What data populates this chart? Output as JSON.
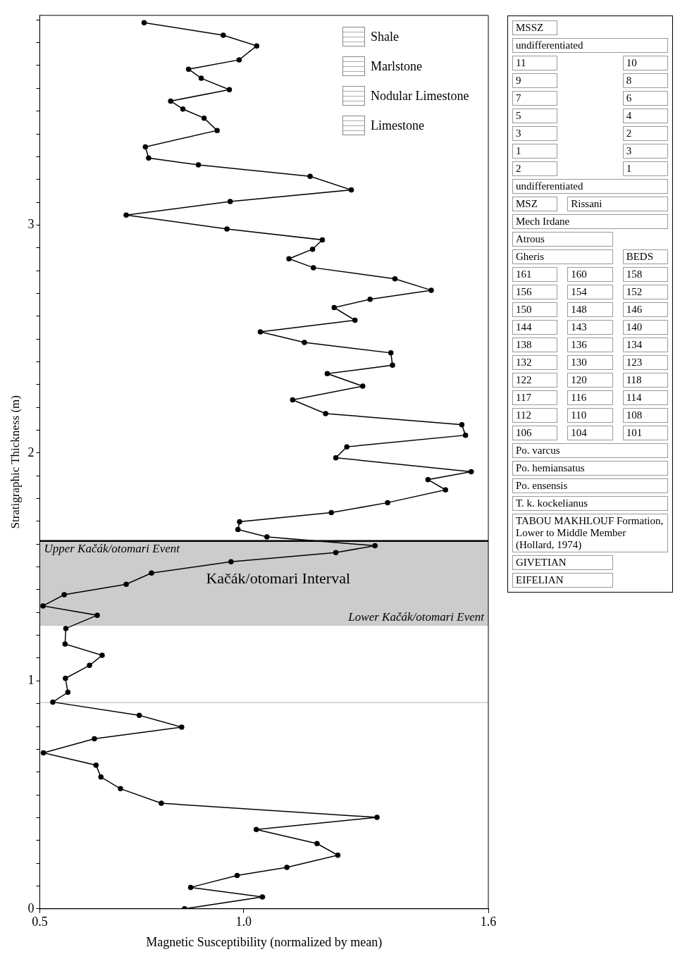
{
  "chart_data": [
    {
      "type": "line",
      "xlabel": "Magnetic Susceptibility (normalized by mean)",
      "ylabel": "Stratigraphic Thickness (m)",
      "xlim": [
        0.5,
        1.6
      ],
      "ylim": [
        0,
        3.92
      ],
      "xticks": [
        0.5,
        {
          "value": 1.0,
          "label": "1.0"
        },
        1.6
      ],
      "yticks": [
        0,
        {
          "value": 0.1,
          "label": null
        },
        {
          "value": 0.2,
          "label": null
        },
        {
          "value": 0.3,
          "label": null
        },
        {
          "value": 0.4,
          "label": null
        },
        {
          "value": 0.5,
          "label": null
        },
        {
          "value": 0.6,
          "label": null
        },
        {
          "value": 0.7,
          "label": null
        },
        {
          "value": 0.8,
          "label": null
        },
        {
          "value": 0.9,
          "label": null
        },
        1,
        {
          "value": 1.1,
          "label": null
        },
        {
          "value": 1.2,
          "label": null
        },
        {
          "value": 1.3,
          "label": null
        },
        {
          "value": 1.4,
          "label": null
        },
        {
          "value": 1.5,
          "label": null
        },
        {
          "value": 1.6,
          "label": null
        },
        {
          "value": 1.7,
          "label": null
        },
        {
          "value": 1.8,
          "label": null
        },
        {
          "value": 1.9,
          "label": null
        },
        2,
        {
          "value": 2.1,
          "label": null
        },
        {
          "value": 2.2,
          "label": null
        },
        {
          "value": 2.3,
          "label": null
        },
        {
          "value": 2.4,
          "label": null
        },
        {
          "value": 2.5,
          "label": null
        },
        {
          "value": 2.6,
          "label": null
        },
        {
          "value": 2.7,
          "label": null
        },
        {
          "value": 2.8,
          "label": null
        },
        {
          "value": 2.9,
          "label": null
        },
        3,
        {
          "value": 3.1,
          "label": null
        },
        {
          "value": 3.2,
          "label": null
        },
        {
          "value": 3.3,
          "label": null
        },
        {
          "value": 3.4,
          "label": null
        },
        {
          "value": 3.5,
          "label": null
        },
        {
          "value": 3.6,
          "label": null
        },
        {
          "value": 3.7,
          "label": null
        },
        {
          "value": 3.8,
          "label": null
        },
        {
          "value": 3.9,
          "label": null
        }
      ],
      "grid": false,
      "marker": "circle",
      "line_style": "solid",
      "legend": false,
      "series": [
        {
          "color": "#000000",
          "x": [
            0.855,
            1.046,
            0.87,
            0.984,
            1.106,
            1.231,
            1.18,
            1.031,
            1.327,
            0.798,
            0.698,
            0.65,
            0.638,
            0.509,
            0.634,
            0.848,
            0.744,
            0.532,
            0.569,
            0.563,
            0.622,
            0.653,
            0.562,
            0.564,
            0.641,
            0.508,
            0.56,
            0.712,
            0.774,
            0.969,
            1.226,
            1.322,
            1.057,
            0.986,
            0.99,
            1.215,
            1.353,
            1.495,
            1.452,
            1.558,
            1.226,
            1.253,
            1.544,
            1.535,
            1.201,
            1.12,
            1.292,
            1.205,
            1.365,
            1.361,
            1.149,
            1.041,
            1.273,
            1.222,
            1.31,
            1.46,
            1.371,
            1.171,
            1.111,
            1.169,
            1.193,
            0.959,
            0.712,
            0.967,
            1.264,
            1.163,
            0.889,
            0.767,
            0.759,
            0.935,
            0.903,
            0.851,
            0.821,
            0.965,
            0.896,
            0.865,
            0.989,
            1.032,
            0.95,
            0.756
          ],
          "values": [
            0,
            0.052,
            0.094,
            0.146,
            0.182,
            0.235,
            0.286,
            0.348,
            0.401,
            0.463,
            0.527,
            0.578,
            0.63,
            0.684,
            0.746,
            0.797,
            0.849,
            0.907,
            0.95,
            1.011,
            1.068,
            1.112,
            1.162,
            1.23,
            1.288,
            1.329,
            1.378,
            1.424,
            1.473,
            1.523,
            1.563,
            1.593,
            1.632,
            1.664,
            1.698,
            1.738,
            1.782,
            1.838,
            1.883,
            1.918,
            1.979,
            2.027,
            2.078,
            2.124,
            2.173,
            2.233,
            2.293,
            2.348,
            2.385,
            2.439,
            2.485,
            2.531,
            2.582,
            2.638,
            2.674,
            2.714,
            2.764,
            2.813,
            2.852,
            2.894,
            2.935,
            2.983,
            3.044,
            3.103,
            3.154,
            3.214,
            3.264,
            3.294,
            3.343,
            3.415,
            3.469,
            3.509,
            3.544,
            3.594,
            3.644,
            3.684,
            3.725,
            3.786,
            3.833,
            3.888
          ]
        }
      ],
      "bands": [
        {
          "axis": "y",
          "from": 1.241,
          "to": 1.614,
          "label": "Kačák/otomari Interval",
          "color": "#cccccc"
        }
      ],
      "ref_lines": [
        {
          "axis": "y",
          "value": 1.614,
          "label": "Upper Kačák/otomari Event",
          "color": "#000000"
        },
        {
          "axis": "y",
          "value": 0.905,
          "color": "#999999"
        }
      ],
      "annotations": [
        {
          "text": "Lower Kačák/otomari Event",
          "x": 1.6,
          "y": 1.241
        }
      ]
    },
    {
      "type": "other",
      "annotations": [
        "MSSZ",
        "undifferentiated",
        "11",
        "10",
        "9",
        "8",
        "7",
        "6",
        "5",
        "4",
        "3",
        "2",
        "1",
        "3",
        "2",
        "1",
        "undifferentiated",
        "MSZ",
        "Rissani",
        "Mech Irdane",
        "Atrous",
        "Gheris",
        "BEDS",
        "161",
        "160",
        "158",
        "156",
        "154",
        "152",
        "150",
        "148",
        "146",
        "144",
        "143",
        "140",
        "138",
        "136",
        "134",
        "132",
        "130",
        "123",
        "122",
        "120",
        "118",
        "117",
        "116",
        "114",
        "112",
        "110",
        "108",
        "106",
        "104",
        "101",
        "Po. varcus",
        "Po. hemiansatus",
        "Po. ensensis",
        "T. k. kockelianus",
        "TABOU MAKHLOUF Formation, Lower to Middle Member (Hollard, 1974)",
        "GIVETIAN",
        "EIFELIAN"
      ]
    },
    {
      "type": "other",
      "annotations": [
        "Shale",
        "Marlstone",
        "Nodular Limestone",
        "Limestone"
      ]
    }
  ]
}
